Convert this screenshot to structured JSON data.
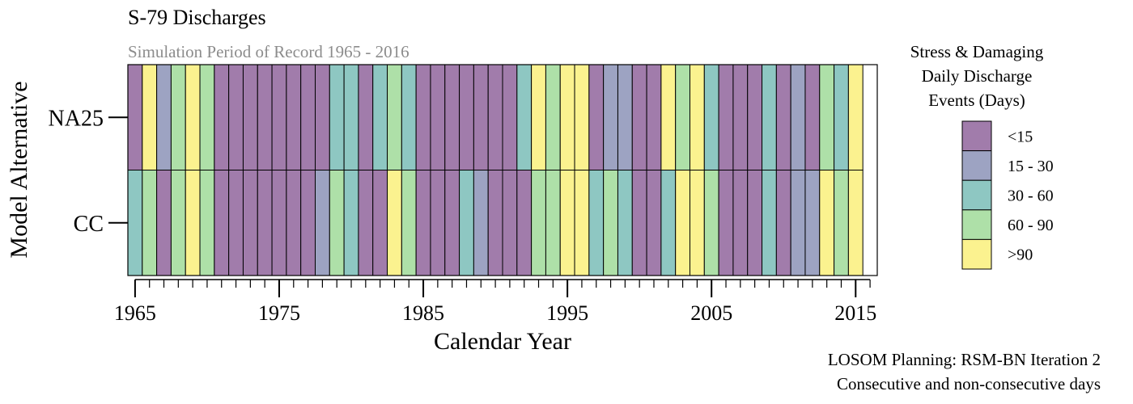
{
  "chart_data": {
    "type": "heatmap",
    "title": "S-79 Discharges",
    "subtitle": "Simulation Period of Record 1965 - 2016",
    "xlabel": "Calendar Year",
    "ylabel": "Model Alternative",
    "x_range": [
      1965,
      2016
    ],
    "x_ticks": [
      1965,
      1975,
      1985,
      1995,
      2005,
      2015
    ],
    "rows": [
      "NA25",
      "CC"
    ],
    "legend": {
      "title_lines": [
        "Stress & Damaging",
        "Daily Discharge",
        "Events (Days)"
      ],
      "placement": "right",
      "categories": [
        {
          "label": "<15",
          "color": "#a17cab"
        },
        {
          "label": "15 - 30",
          "color": "#9da3c2"
        },
        {
          "label": "30 - 60",
          "color": "#8ec7c2"
        },
        {
          "label": "60 - 90",
          "color": "#aee0a8"
        },
        {
          "label": ">90",
          "color": "#fbf28f"
        }
      ]
    },
    "grid": false,
    "series": [
      {
        "name": "NA25",
        "category_index": [
          0,
          4,
          1,
          3,
          4,
          3,
          0,
          0,
          0,
          0,
          0,
          0,
          0,
          0,
          2,
          2,
          0,
          2,
          3,
          2,
          0,
          0,
          0,
          0,
          0,
          0,
          0,
          2,
          4,
          3,
          4,
          4,
          0,
          1,
          1,
          0,
          0,
          4,
          3,
          4,
          2,
          0,
          0,
          0,
          2,
          0,
          1,
          0,
          3,
          2,
          4
        ]
      },
      {
        "name": "CC",
        "category_index": [
          2,
          3,
          0,
          3,
          4,
          3,
          0,
          0,
          0,
          0,
          0,
          0,
          0,
          1,
          3,
          2,
          0,
          0,
          4,
          3,
          0,
          0,
          0,
          2,
          1,
          0,
          0,
          0,
          3,
          3,
          4,
          4,
          2,
          3,
          2,
          0,
          0,
          2,
          4,
          4,
          3,
          0,
          0,
          0,
          2,
          0,
          1,
          1,
          4,
          3,
          4
        ]
      }
    ],
    "caption_lines": [
      "LOSOM Planning: RSM-BN Iteration 2",
      "Consecutive and non-consecutive days"
    ]
  }
}
